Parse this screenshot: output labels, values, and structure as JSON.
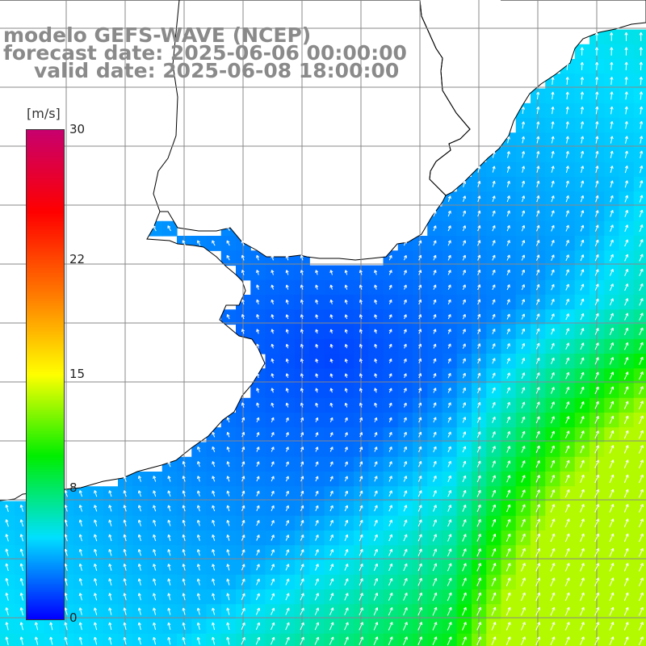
{
  "title": {
    "line1": "modelo GEFS-WAVE (NCEP)",
    "line2": "forecast date: 2025-06-06 00:00:00",
    "line3": "valid date: 2025-06-08 18:00:00"
  },
  "colorbar": {
    "unit": "[m/s]",
    "ticks": [
      "30",
      "22",
      "15",
      "8",
      "0"
    ],
    "tick_values": [
      30,
      22,
      15,
      8,
      0
    ],
    "range": [
      0,
      30
    ],
    "colors": [
      "#0000ff",
      "#00e0ff",
      "#00ee00",
      "#ffff00",
      "#ff7800",
      "#ff0000",
      "#c8006e"
    ]
  },
  "map": {
    "variable": "wind speed",
    "colors": {
      "land": "#ffffff",
      "coastline": "#000000",
      "grid": "#888888",
      "arrow": "#ffffff",
      "grid_label": "#cccccc"
    }
  }
}
